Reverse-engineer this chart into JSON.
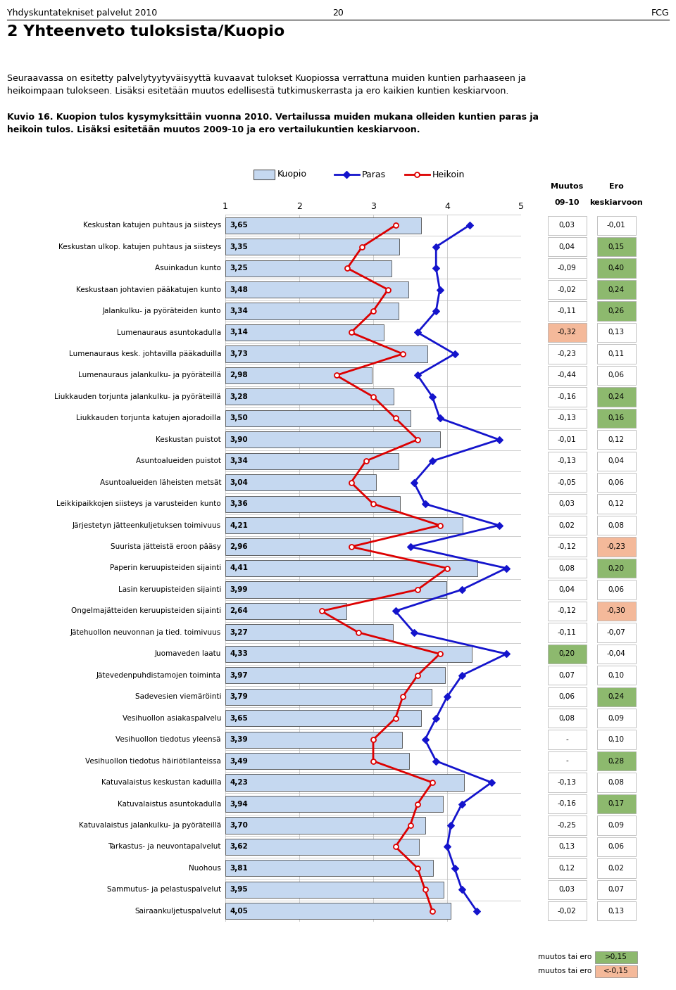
{
  "header_left": "Yhdyskuntatekniset palvelut 2010",
  "header_center": "20",
  "header_right": "FCG",
  "title": "2 Yhteenveto tuloksista/Kuopio",
  "intro_text": "Seuraavassa on esitetty palvelytyytyväisyyttä kuvaavat tulokset Kuopiossa verrattuna muiden kuntien parhaaseen ja\nheikoimpaan tulokseen. Lisäksi esitetään muutos edellisestä tutkimuskerrasta ja ero kaikien kuntien keskiarvoon.",
  "caption_line1": "Kuvio 16. Kuopion tulos kysymyksittäin vuonna 2010. Vertailussa muiden mukana olleiden kuntien paras ja",
  "caption_line2": "heikoin tulos. Lisäksi esitetään muutos 2009-10 ja ero vertailukuntien keskiarvoon.",
  "legend_kuopio": "Kuopio",
  "legend_paras": "Paras",
  "legend_heikoin": "Heikoin",
  "col_muutos": "Muutos",
  "col_muutos2": "09-10",
  "col_ero": "Ero",
  "col_ero2": "keskiarvoon",
  "categories": [
    "Keskustan katujen puhtaus ja siisteys",
    "Keskustan ulkop. katujen puhtaus ja siisteys",
    "Asuinkadun kunto",
    "Keskustaan johtavien pääkatujen kunto",
    "Jalankulku- ja pyöräteiden kunto",
    "Lumenauraus asuntokadulla",
    "Lumenauraus kesk. johtavilla pääkaduilla",
    "Lumenauraus jalankulku- ja pyöräteillä",
    "Liukkauden torjunta jalankulku- ja pyöräteillä",
    "Liukkauden torjunta katujen ajoradoilla",
    "Keskustan puistot",
    "Asuntoalueiden puistot",
    "Asuntoalueiden läheisten metsät",
    "Leikkipaikkojen siisteys ja varusteiden kunto",
    "Järjestetyn jätteenkuljetuksen toimivuus",
    "Suurista jätteistä eroon pääsy",
    "Paperin keruupisteiden sijainti",
    "Lasin keruupisteiden sijainti",
    "Ongelmajätteiden keruupisteiden sijainti",
    "Jätehuollon neuvonnan ja tied. toimivuus",
    "Juomaveden laatu",
    "Jätevedenpuhdistamojen toiminta",
    "Sadevesien viemäröinti",
    "Vesihuollon asiakaspalvelu",
    "Vesihuollon tiedotus yleensä",
    "Vesihuollon tiedotus häiriötilanteissa",
    "Katuvalaistus keskustan kaduilla",
    "Katuvalaistus asuntokadulla",
    "Katuvalaistus jalankulku- ja pyöräteillä",
    "Tarkastus- ja neuvontapalvelut",
    "Nuohous",
    "Sammutus- ja pelastuspalvelut",
    "Sairaankuljetuspalvelut"
  ],
  "kuopio_values": [
    3.65,
    3.35,
    3.25,
    3.48,
    3.34,
    3.14,
    3.73,
    2.98,
    3.28,
    3.5,
    3.9,
    3.34,
    3.04,
    3.36,
    4.21,
    2.96,
    4.41,
    3.99,
    2.64,
    3.27,
    4.33,
    3.97,
    3.79,
    3.65,
    3.39,
    3.49,
    4.23,
    3.94,
    3.7,
    3.62,
    3.81,
    3.95,
    4.05
  ],
  "paras_values": [
    4.3,
    3.85,
    3.85,
    3.9,
    3.85,
    3.6,
    4.1,
    3.6,
    3.8,
    3.9,
    4.7,
    3.8,
    3.55,
    3.7,
    4.7,
    3.5,
    4.8,
    4.2,
    3.3,
    3.55,
    4.8,
    4.2,
    4.0,
    3.85,
    3.7,
    3.85,
    4.6,
    4.2,
    4.05,
    4.0,
    4.1,
    4.2,
    4.4
  ],
  "heikoin_values": [
    3.3,
    2.85,
    2.65,
    3.2,
    3.0,
    2.7,
    3.4,
    2.5,
    3.0,
    3.3,
    3.6,
    2.9,
    2.7,
    3.0,
    3.9,
    2.7,
    4.0,
    3.6,
    2.3,
    2.8,
    3.9,
    3.6,
    3.4,
    3.3,
    3.0,
    3.0,
    3.8,
    3.6,
    3.5,
    3.3,
    3.6,
    3.7,
    3.8
  ],
  "muutos": [
    "0,03",
    "0,04",
    "-0,09",
    "-0,02",
    "-0,11",
    "-0,32",
    "-0,23",
    "-0,44",
    "-0,16",
    "-0,13",
    "-0,01",
    "-0,13",
    "-0,05",
    "0,03",
    "0,02",
    "-0,12",
    "0,08",
    "0,04",
    "-0,12",
    "-0,11",
    "0,20",
    "0,07",
    "0,06",
    "0,08",
    "-",
    "-",
    "-0,13",
    "-0,16",
    "-0,25",
    "0,13",
    "0,12",
    "0,03",
    "-0,02"
  ],
  "ero": [
    "-0,01",
    "0,15",
    "0,40",
    "0,24",
    "0,26",
    "0,13",
    "0,11",
    "0,06",
    "0,24",
    "0,16",
    "0,12",
    "0,04",
    "0,06",
    "0,12",
    "0,08",
    "-0,23",
    "0,20",
    "0,06",
    "-0,30",
    "-0,07",
    "-0,04",
    "0,10",
    "0,24",
    "0,09",
    "0,10",
    "0,28",
    "0,08",
    "0,17",
    "0,09",
    "0,06",
    "0,02",
    "0,07",
    "0,13"
  ],
  "muutos_highlight_color": [
    "none",
    "none",
    "none",
    "none",
    "none",
    "#f4b99a",
    "none",
    "none",
    "none",
    "none",
    "none",
    "none",
    "none",
    "none",
    "none",
    "none",
    "none",
    "none",
    "none",
    "none",
    "#8db96e",
    "none",
    "none",
    "none",
    "none",
    "none",
    "none",
    "none",
    "none",
    "none",
    "none",
    "none",
    "none"
  ],
  "ero_highlight_color": [
    "none",
    "#8db96e",
    "#8db96e",
    "#8db96e",
    "#8db96e",
    "none",
    "none",
    "none",
    "#8db96e",
    "#8db96e",
    "none",
    "none",
    "none",
    "none",
    "none",
    "#f4b99a",
    "#8db96e",
    "none",
    "#f4b99a",
    "none",
    "none",
    "none",
    "#8db96e",
    "none",
    "none",
    "#8db96e",
    "none",
    "#8db96e",
    "none",
    "none",
    "none",
    "none",
    "none"
  ],
  "bar_color": "#c5d8f0",
  "bar_edge_color": "#4a4a4a",
  "paras_color": "#1414cc",
  "heikoin_color": "#dd0000",
  "xlim": [
    1,
    5
  ],
  "xticks": [
    1,
    2,
    3,
    4,
    5
  ],
  "legend_color_green": "#8db96e",
  "legend_color_orange": "#f4b99a"
}
